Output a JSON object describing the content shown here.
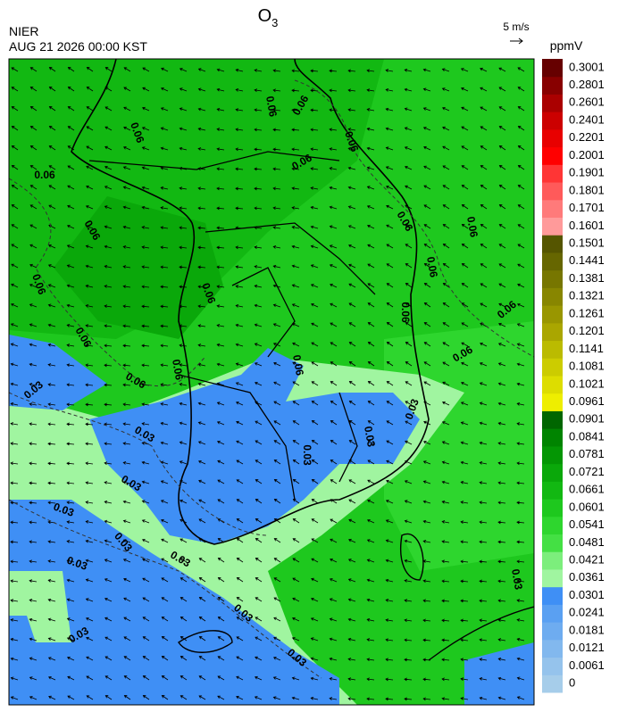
{
  "header": {
    "title": "O",
    "title_subscript": "3",
    "agency": "NIER",
    "timestamp": "AUG 21 2026 00:00 KST",
    "wind_reference": "5 m/s"
  },
  "colorbar": {
    "unit": "ppmV",
    "levels": [
      0,
      0.0061,
      0.0121,
      0.0181,
      0.0241,
      0.0301,
      0.0361,
      0.0421,
      0.0481,
      0.0541,
      0.0601,
      0.0661,
      0.0721,
      0.0781,
      0.0841,
      0.0901,
      0.0961,
      0.1021,
      0.1081,
      0.1141,
      0.1201,
      0.1261,
      0.1321,
      0.1381,
      0.1441,
      0.1501,
      0.1601,
      0.1701,
      0.1801,
      0.1901,
      0.2001,
      0.2201,
      0.2401,
      0.2601,
      0.2801,
      0.3001
    ],
    "colors": [
      "#a6cdea",
      "#95c3ec",
      "#82b8ee",
      "#6eacf0",
      "#5aa0f2",
      "#3f8ff5",
      "#a0f5a0",
      "#7cee7c",
      "#44e044",
      "#2ed62e",
      "#1ec81e",
      "#12b812",
      "#0aa80a",
      "#049604",
      "#008400",
      "#006600",
      "#eeee00",
      "#dddd00",
      "#cccc00",
      "#bbbb00",
      "#aaa600",
      "#999600",
      "#888600",
      "#777600",
      "#666600",
      "#555500",
      "#ff9a9a",
      "#ff7a7a",
      "#ff5a5a",
      "#ff3535",
      "#ff0000",
      "#e80000",
      "#cc0000",
      "#aa0000",
      "#880000",
      "#660000"
    ]
  },
  "contour_labels": [
    "0.06",
    "0.03"
  ]
}
